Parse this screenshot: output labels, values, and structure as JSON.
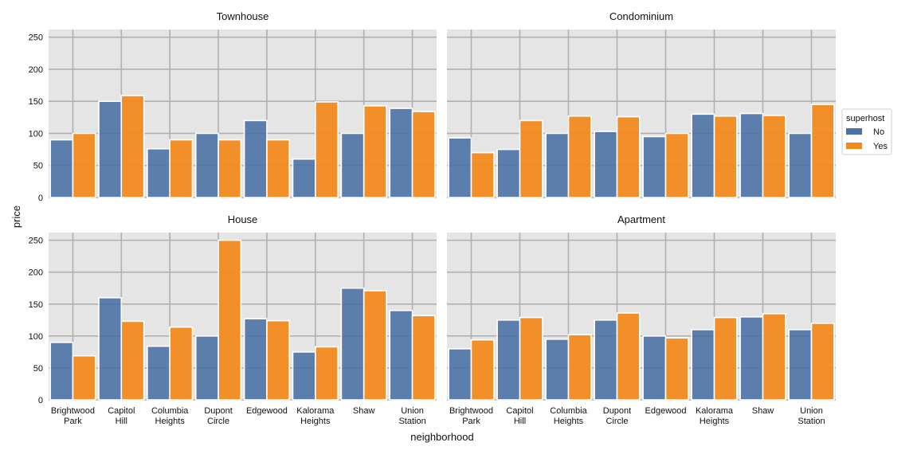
{
  "chart_data": {
    "type": "bar",
    "xlabel": "neighborhood",
    "ylabel": "price",
    "ylim": [
      0,
      262
    ],
    "yticks": [
      0,
      50,
      100,
      150,
      200,
      250
    ],
    "grid": true,
    "legend": {
      "title": "superhost",
      "placement": "right",
      "entries": [
        {
          "label": "No",
          "color": "#4c72a5"
        },
        {
          "label": "Yes",
          "color": "#f28a1e"
        }
      ]
    },
    "categories": [
      {
        "line1": "Brightwood",
        "line2": "Park"
      },
      {
        "line1": "Capitol",
        "line2": "Hill"
      },
      {
        "line1": "Columbia",
        "line2": "Heights"
      },
      {
        "line1": "Dupont",
        "line2": "Circle"
      },
      {
        "line1": "Edgewood",
        "line2": ""
      },
      {
        "line1": "Kalorama",
        "line2": "Heights"
      },
      {
        "line1": "Shaw",
        "line2": ""
      },
      {
        "line1": "Union",
        "line2": "Station"
      }
    ],
    "panels": [
      {
        "title": "Townhouse",
        "series": [
          {
            "name": "No",
            "values": [
              90,
              150,
              76,
              100,
              120,
              60,
              100,
              139
            ]
          },
          {
            "name": "Yes",
            "values": [
              100,
              159,
              90,
              90,
              90,
              149,
              143,
              134
            ]
          }
        ]
      },
      {
        "title": "Condominium",
        "series": [
          {
            "name": "No",
            "values": [
              93,
              75,
              100,
              103,
              95,
              130,
              131,
              100
            ]
          },
          {
            "name": "Yes",
            "values": [
              70,
              120,
              127,
              126,
              100,
              127,
              128,
              145
            ]
          }
        ]
      },
      {
        "title": "House",
        "series": [
          {
            "name": "No",
            "values": [
              90,
              160,
              84,
              100,
              127,
              75,
              175,
              140
            ]
          },
          {
            "name": "Yes",
            "values": [
              69,
              123,
              114,
              250,
              124,
              83,
              171,
              132
            ]
          }
        ]
      },
      {
        "title": "Apartment",
        "series": [
          {
            "name": "No",
            "values": [
              80,
              125,
              95,
              125,
              100,
              110,
              130,
              110
            ]
          },
          {
            "name": "Yes",
            "values": [
              94,
              129,
              102,
              136,
              97,
              129,
              135,
              120
            ]
          }
        ]
      }
    ]
  }
}
